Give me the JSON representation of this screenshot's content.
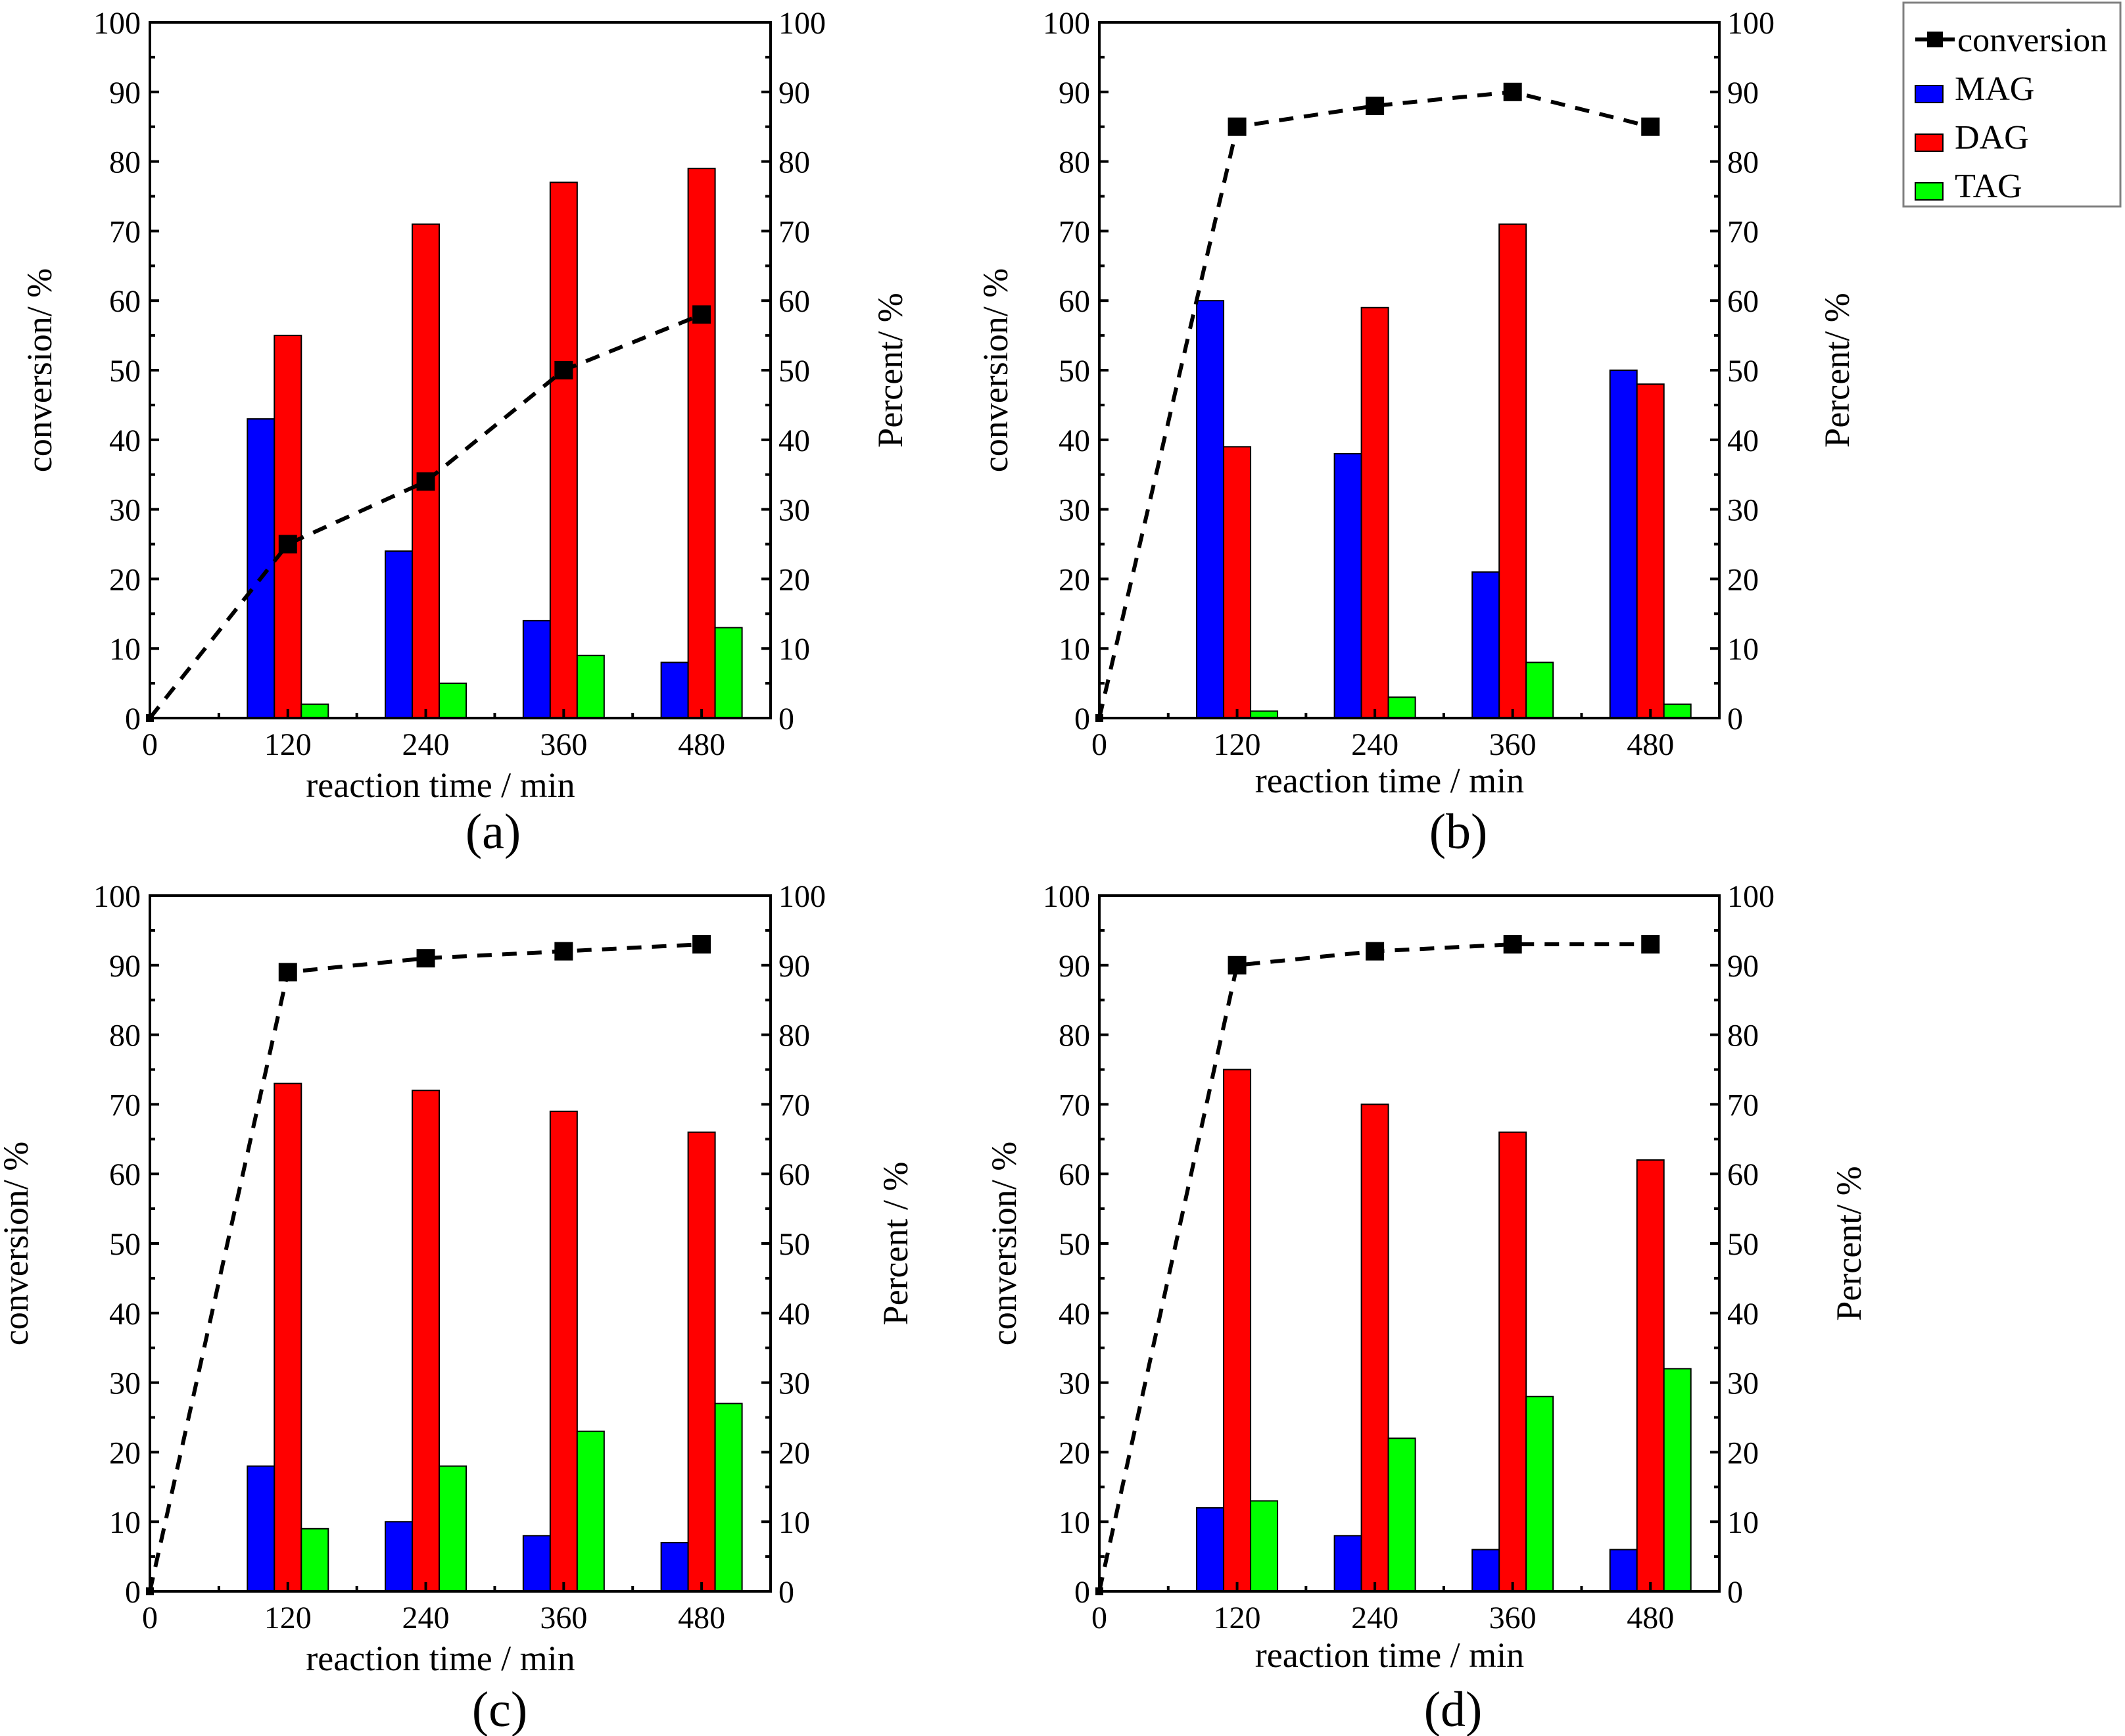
{
  "chart_data": [
    {
      "type": "bar",
      "panel_label": "(a)",
      "xlabel": "reaction time / min",
      "ylabel_left": "conversion/ %",
      "ylabel_right": "Percent/ %",
      "x_ticks": [
        "0",
        "120",
        "240",
        "360",
        "480"
      ],
      "x_range": [
        0,
        540
      ],
      "y_range": [
        0,
        100
      ],
      "y_ticks": [
        "0",
        "10",
        "20",
        "30",
        "40",
        "50",
        "60",
        "70",
        "80",
        "90",
        "100"
      ],
      "categories": [
        120,
        240,
        360,
        480
      ],
      "series": [
        {
          "name": "MAG",
          "values": [
            43,
            24,
            14,
            8
          ]
        },
        {
          "name": "DAG",
          "values": [
            55,
            71,
            77,
            79
          ]
        },
        {
          "name": "TAG",
          "values": [
            2,
            5,
            9,
            13
          ]
        }
      ],
      "conversion": {
        "x": [
          0,
          120,
          240,
          360,
          480
        ],
        "y": [
          0,
          25,
          34,
          50,
          58
        ]
      }
    },
    {
      "type": "bar",
      "panel_label": "(b)",
      "xlabel": "reaction time / min",
      "ylabel_left": "conversion/ %",
      "ylabel_right": "Percent/ %",
      "x_ticks": [
        "0",
        "120",
        "240",
        "360",
        "480"
      ],
      "x_range": [
        0,
        540
      ],
      "y_range": [
        0,
        100
      ],
      "y_ticks": [
        "0",
        "10",
        "20",
        "30",
        "40",
        "50",
        "60",
        "70",
        "80",
        "90",
        "100"
      ],
      "categories": [
        120,
        240,
        360,
        480
      ],
      "series": [
        {
          "name": "MAG",
          "values": [
            60,
            38,
            21,
            50
          ]
        },
        {
          "name": "DAG",
          "values": [
            39,
            59,
            71,
            48
          ]
        },
        {
          "name": "TAG",
          "values": [
            1,
            3,
            8,
            2
          ]
        }
      ],
      "conversion": {
        "x": [
          0,
          120,
          240,
          360,
          480
        ],
        "y": [
          0,
          85,
          88,
          90,
          85
        ]
      }
    },
    {
      "type": "bar",
      "panel_label": "(c)",
      "xlabel": "reaction time / min",
      "ylabel_left": "conversion/ %",
      "ylabel_right": "Percent / %",
      "x_ticks": [
        "0",
        "120",
        "240",
        "360",
        "480"
      ],
      "x_range": [
        0,
        540
      ],
      "y_range": [
        0,
        100
      ],
      "y_ticks": [
        "0",
        "10",
        "20",
        "30",
        "40",
        "50",
        "60",
        "70",
        "80",
        "90",
        "100"
      ],
      "categories": [
        120,
        240,
        360,
        480
      ],
      "series": [
        {
          "name": "MAG",
          "values": [
            18,
            10,
            8,
            7
          ]
        },
        {
          "name": "DAG",
          "values": [
            73,
            72,
            69,
            66
          ]
        },
        {
          "name": "TAG",
          "values": [
            9,
            18,
            23,
            27
          ]
        }
      ],
      "conversion": {
        "x": [
          0,
          120,
          240,
          360,
          480
        ],
        "y": [
          0,
          89,
          91,
          92,
          93
        ]
      }
    },
    {
      "type": "bar",
      "panel_label": "(d)",
      "xlabel": "reaction time / min",
      "ylabel_left": "conversion/ %",
      "ylabel_right": "Percent/ %",
      "x_ticks": [
        "0",
        "120",
        "240",
        "360",
        "480"
      ],
      "x_range": [
        0,
        540
      ],
      "y_range": [
        0,
        100
      ],
      "y_ticks": [
        "0",
        "10",
        "20",
        "30",
        "40",
        "50",
        "60",
        "70",
        "80",
        "90",
        "100"
      ],
      "categories": [
        120,
        240,
        360,
        480
      ],
      "series": [
        {
          "name": "MAG",
          "values": [
            12,
            8,
            6,
            6
          ]
        },
        {
          "name": "DAG",
          "values": [
            75,
            70,
            66,
            62
          ]
        },
        {
          "name": "TAG",
          "values": [
            13,
            22,
            28,
            32
          ]
        }
      ],
      "conversion": {
        "x": [
          0,
          120,
          240,
          360,
          480
        ],
        "y": [
          0,
          90,
          92,
          93,
          93
        ]
      }
    }
  ],
  "legend": {
    "items": [
      {
        "name": "conversion",
        "kind": "line-marker"
      },
      {
        "name": "MAG",
        "kind": "box"
      },
      {
        "name": "DAG",
        "kind": "box"
      },
      {
        "name": "TAG",
        "kind": "box"
      }
    ]
  },
  "colors": {
    "MAG": "#0000ff",
    "DAG": "#ff0000",
    "TAG": "#00ff00",
    "conversion": "#000000"
  }
}
